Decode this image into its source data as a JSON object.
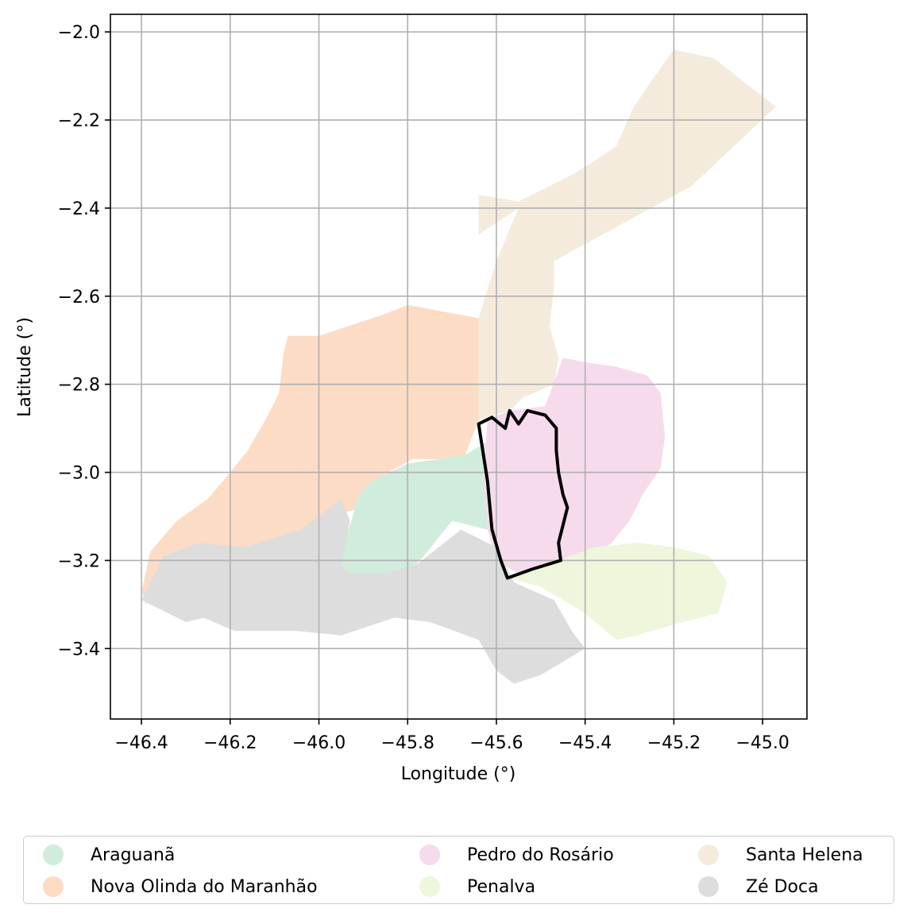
{
  "chart_data": {
    "type": "map",
    "xlabel": "Longitude (°)",
    "ylabel": "Latitude (°)",
    "xlim": [
      -46.47,
      -44.9
    ],
    "ylim": [
      -3.56,
      -1.96
    ],
    "x_ticks": [
      -46.4,
      -46.2,
      -46.0,
      -45.8,
      -45.6,
      -45.4,
      -45.2,
      -45.0
    ],
    "x_tick_labels": [
      "−46.4",
      "−46.2",
      "−46.0",
      "−45.8",
      "−45.6",
      "−45.4",
      "−45.2",
      "−45.0"
    ],
    "y_ticks": [
      -2.0,
      -2.2,
      -2.4,
      -2.6,
      -2.8,
      -3.0,
      -3.2,
      -3.4
    ],
    "y_tick_labels": [
      "−2.0",
      "−2.2",
      "−2.4",
      "−2.6",
      "−2.8",
      "−3.0",
      "−3.2",
      "−3.4"
    ],
    "grid": true,
    "legend_placement": "bottom",
    "regions": [
      {
        "name": "Santa Helena",
        "color": "#f5ebdd",
        "polygon": [
          [
            -45.64,
            -2.37
          ],
          [
            -45.55,
            -2.385
          ],
          [
            -45.44,
            -2.33
          ],
          [
            -45.39,
            -2.3
          ],
          [
            -45.33,
            -2.26
          ],
          [
            -45.29,
            -2.17
          ],
          [
            -45.25,
            -2.11
          ],
          [
            -45.2,
            -2.04
          ],
          [
            -45.11,
            -2.06
          ],
          [
            -44.97,
            -2.17
          ],
          [
            -45.16,
            -2.35
          ],
          [
            -45.47,
            -2.52
          ],
          [
            -45.47,
            -2.58
          ],
          [
            -45.48,
            -2.67
          ],
          [
            -45.46,
            -2.74
          ],
          [
            -45.47,
            -2.8
          ],
          [
            -45.54,
            -2.83
          ],
          [
            -45.57,
            -2.86
          ],
          [
            -45.64,
            -2.88
          ],
          [
            -45.64,
            -2.65
          ],
          [
            -45.6,
            -2.52
          ],
          [
            -45.55,
            -2.4
          ],
          [
            -45.64,
            -2.46
          ]
        ]
      },
      {
        "name": "Nova Olinda do Maranhão",
        "color": "#fcdcc5",
        "polygon": [
          [
            -46.4,
            -3.27
          ],
          [
            -46.38,
            -3.18
          ],
          [
            -46.32,
            -3.11
          ],
          [
            -46.25,
            -3.06
          ],
          [
            -46.2,
            -3.0
          ],
          [
            -46.16,
            -2.95
          ],
          [
            -46.12,
            -2.88
          ],
          [
            -46.09,
            -2.82
          ],
          [
            -46.08,
            -2.73
          ],
          [
            -46.07,
            -2.69
          ],
          [
            -46.0,
            -2.69
          ],
          [
            -45.85,
            -2.64
          ],
          [
            -45.8,
            -2.62
          ],
          [
            -45.64,
            -2.65
          ],
          [
            -45.64,
            -2.88
          ],
          [
            -45.67,
            -2.96
          ],
          [
            -45.73,
            -2.97
          ],
          [
            -45.79,
            -2.97
          ],
          [
            -45.86,
            -3.01
          ],
          [
            -45.9,
            -3.08
          ],
          [
            -45.98,
            -3.1
          ],
          [
            -46.04,
            -3.14
          ],
          [
            -46.12,
            -3.16
          ],
          [
            -46.17,
            -3.17
          ],
          [
            -46.28,
            -3.19
          ],
          [
            -46.33,
            -3.21
          ],
          [
            -46.39,
            -3.3
          ]
        ]
      },
      {
        "name": "Araguanã",
        "color": "#d0ecdd",
        "polygon": [
          [
            -45.91,
            -3.05
          ],
          [
            -45.88,
            -3.02
          ],
          [
            -45.8,
            -2.98
          ],
          [
            -45.73,
            -2.97
          ],
          [
            -45.67,
            -2.96
          ],
          [
            -45.62,
            -2.93
          ],
          [
            -45.61,
            -3.06
          ],
          [
            -45.62,
            -3.13
          ],
          [
            -45.7,
            -3.11
          ],
          [
            -45.78,
            -3.21
          ],
          [
            -45.86,
            -3.23
          ],
          [
            -45.93,
            -3.23
          ],
          [
            -45.96,
            -3.21
          ],
          [
            -45.93,
            -3.12
          ]
        ]
      },
      {
        "name": "Pedro do Rosário",
        "color": "#f5dbeb",
        "polygon": [
          [
            -45.62,
            -2.88
          ],
          [
            -45.57,
            -2.86
          ],
          [
            -45.49,
            -2.85
          ],
          [
            -45.45,
            -2.74
          ],
          [
            -45.4,
            -2.75
          ],
          [
            -45.33,
            -2.76
          ],
          [
            -45.26,
            -2.78
          ],
          [
            -45.23,
            -2.82
          ],
          [
            -45.22,
            -2.92
          ],
          [
            -45.23,
            -2.99
          ],
          [
            -45.27,
            -3.05
          ],
          [
            -45.3,
            -3.11
          ],
          [
            -45.34,
            -3.16
          ],
          [
            -45.4,
            -3.2
          ],
          [
            -45.47,
            -3.22
          ],
          [
            -45.55,
            -3.23
          ],
          [
            -45.6,
            -3.2
          ],
          [
            -45.62,
            -3.13
          ],
          [
            -45.63,
            -3.02
          ]
        ]
      },
      {
        "name": "Penalva",
        "color": "#eef6db",
        "polygon": [
          [
            -45.46,
            -3.2
          ],
          [
            -45.38,
            -3.17
          ],
          [
            -45.28,
            -3.16
          ],
          [
            -45.2,
            -3.17
          ],
          [
            -45.12,
            -3.19
          ],
          [
            -45.08,
            -3.25
          ],
          [
            -45.1,
            -3.32
          ],
          [
            -45.18,
            -3.34
          ],
          [
            -45.25,
            -3.36
          ],
          [
            -45.28,
            -3.37
          ],
          [
            -45.33,
            -3.38
          ],
          [
            -45.4,
            -3.32
          ],
          [
            -45.5,
            -3.26
          ],
          [
            -45.57,
            -3.24
          ]
        ]
      },
      {
        "name": "Zé Doca",
        "color": "#dddddd",
        "polygon": [
          [
            -46.4,
            -3.29
          ],
          [
            -46.35,
            -3.19
          ],
          [
            -46.27,
            -3.16
          ],
          [
            -46.17,
            -3.17
          ],
          [
            -46.04,
            -3.13
          ],
          [
            -45.95,
            -3.06
          ],
          [
            -45.93,
            -3.11
          ],
          [
            -45.95,
            -3.21
          ],
          [
            -45.93,
            -3.23
          ],
          [
            -45.86,
            -3.23
          ],
          [
            -45.78,
            -3.21
          ],
          [
            -45.68,
            -3.13
          ],
          [
            -45.6,
            -3.17
          ],
          [
            -45.56,
            -3.25
          ],
          [
            -45.47,
            -3.29
          ],
          [
            -45.43,
            -3.36
          ],
          [
            -45.4,
            -3.4
          ],
          [
            -45.5,
            -3.46
          ],
          [
            -45.56,
            -3.48
          ],
          [
            -45.6,
            -3.45
          ],
          [
            -45.64,
            -3.38
          ],
          [
            -45.75,
            -3.34
          ],
          [
            -45.83,
            -3.33
          ],
          [
            -45.95,
            -3.37
          ],
          [
            -46.05,
            -3.36
          ],
          [
            -46.19,
            -3.36
          ],
          [
            -46.26,
            -3.33
          ],
          [
            -46.3,
            -3.34
          ]
        ]
      }
    ],
    "highlight_outline": {
      "color": "#000000",
      "polygon": [
        [
          -45.64,
          -2.89
        ],
        [
          -45.61,
          -2.875
        ],
        [
          -45.58,
          -2.9
        ],
        [
          -45.57,
          -2.86
        ],
        [
          -45.55,
          -2.89
        ],
        [
          -45.53,
          -2.86
        ],
        [
          -45.49,
          -2.87
        ],
        [
          -45.465,
          -2.9
        ],
        [
          -45.465,
          -2.95
        ],
        [
          -45.46,
          -3.0
        ],
        [
          -45.45,
          -3.05
        ],
        [
          -45.44,
          -3.08
        ],
        [
          -45.45,
          -3.12
        ],
        [
          -45.46,
          -3.16
        ],
        [
          -45.455,
          -3.2
        ],
        [
          -45.52,
          -3.22
        ],
        [
          -45.575,
          -3.24
        ],
        [
          -45.59,
          -3.2
        ],
        [
          -45.61,
          -3.13
        ],
        [
          -45.62,
          -3.02
        ]
      ]
    },
    "legend": [
      {
        "label": "Araguanã",
        "color": "#d0ecdd"
      },
      {
        "label": "Nova Olinda do Maranhão",
        "color": "#fcdcc5"
      },
      {
        "label": "Pedro do Rosário",
        "color": "#f5dbeb"
      },
      {
        "label": "Penalva",
        "color": "#eef6db"
      },
      {
        "label": "Santa Helena",
        "color": "#f5ebdd"
      },
      {
        "label": "Zé Doca",
        "color": "#dddddd"
      }
    ]
  }
}
